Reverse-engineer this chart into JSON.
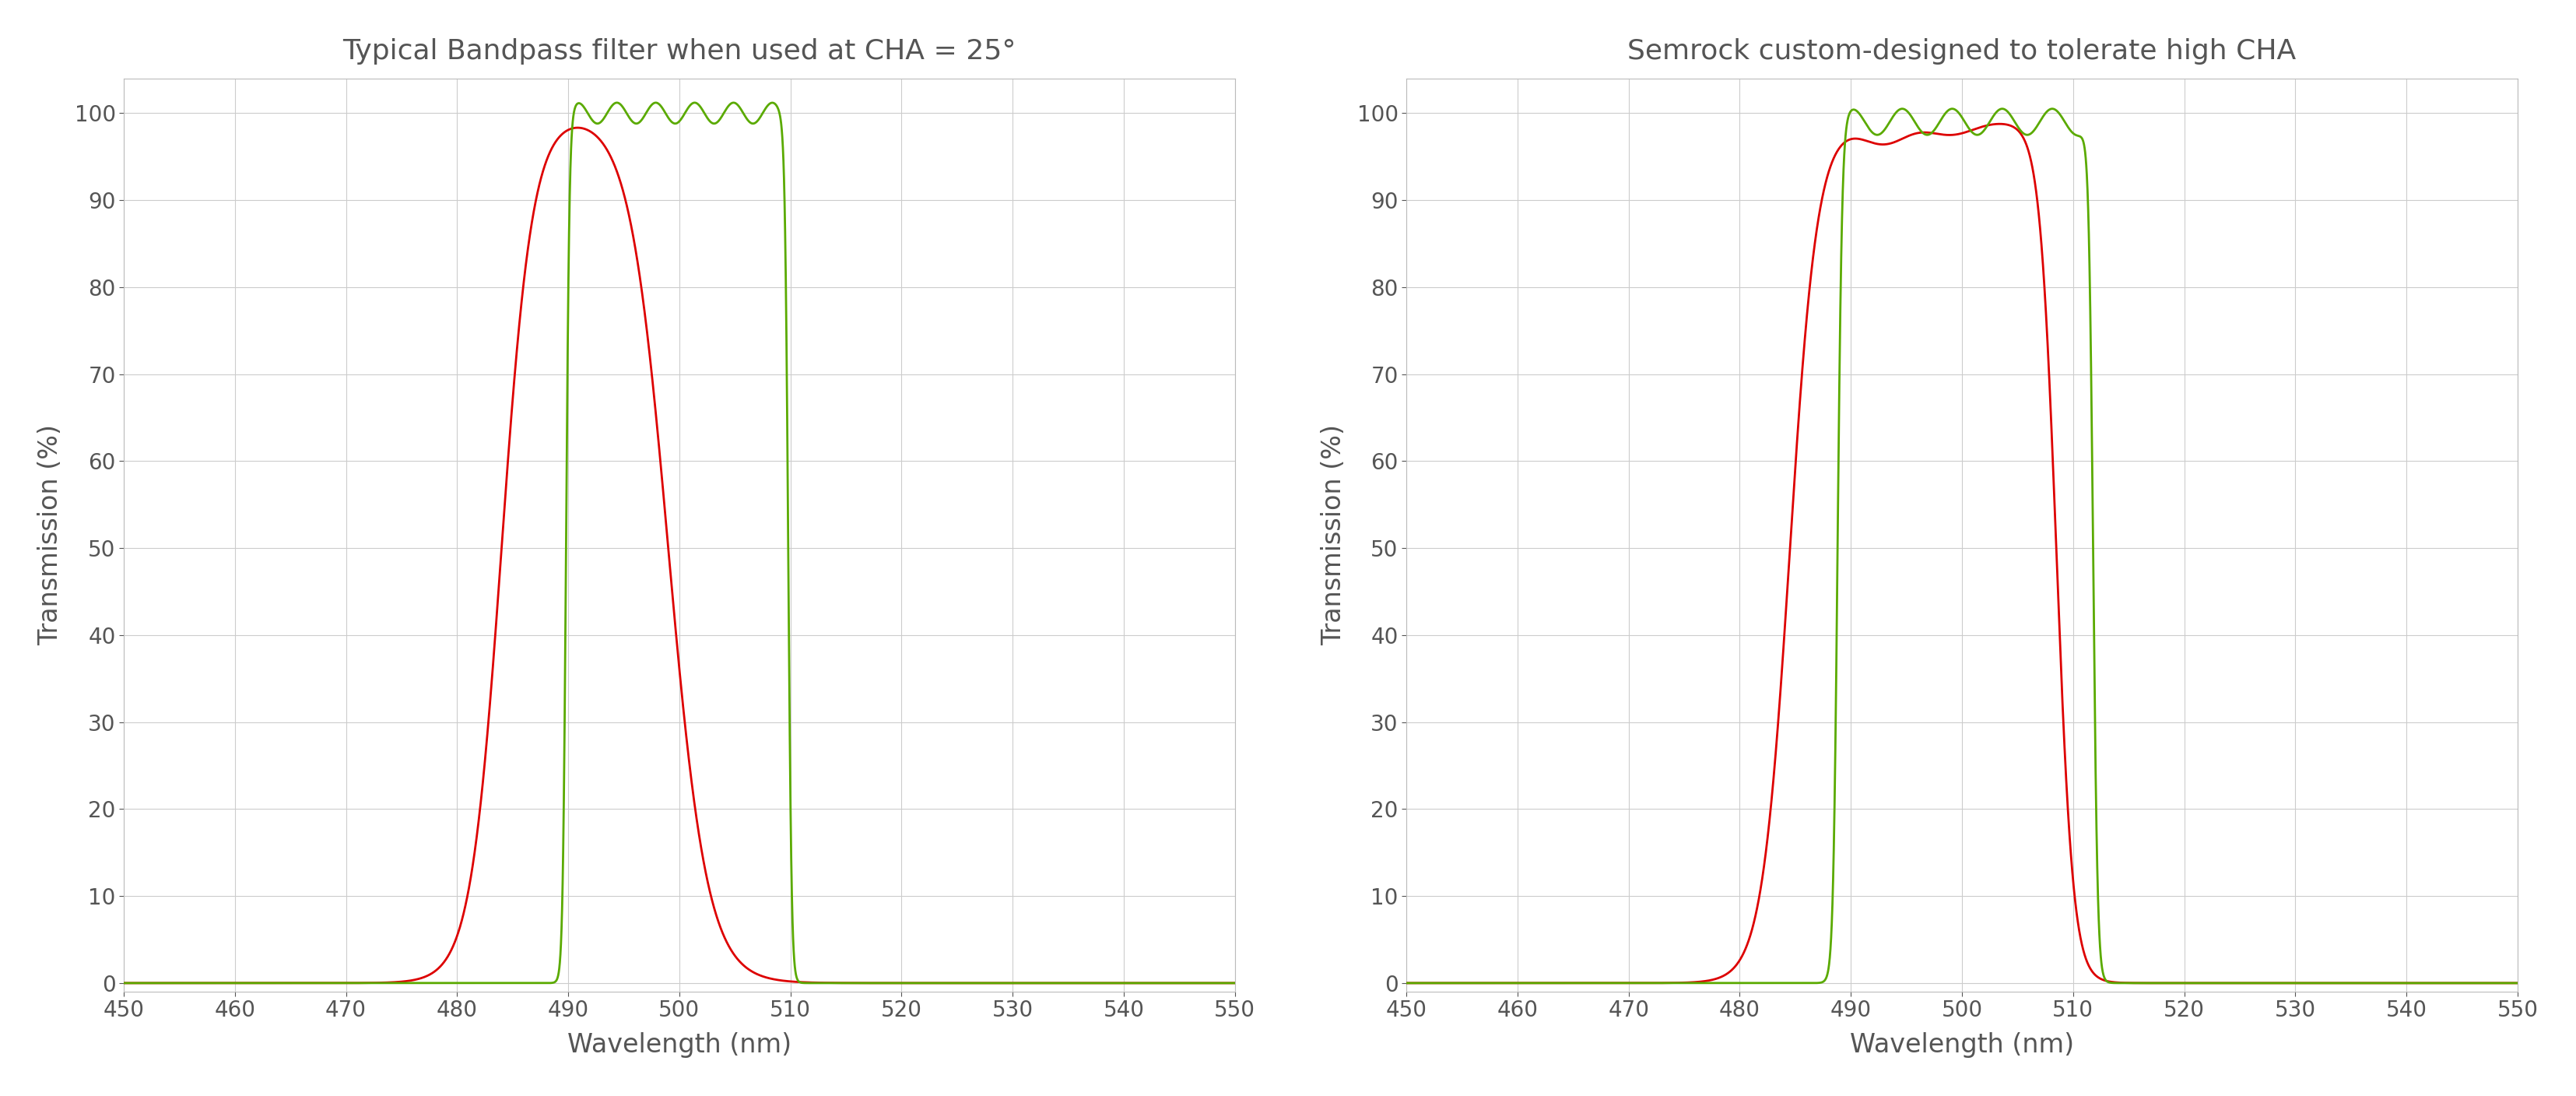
{
  "title_left": "Typical Bandpass filter when used at CHA = 25°",
  "title_right": "Semrock custom-designed to tolerate high CHA",
  "xlabel": "Wavelength (nm)",
  "ylabel": "Transmission (%)",
  "xlim": [
    450,
    550
  ],
  "ylim": [
    -1,
    104
  ],
  "yticks": [
    0,
    10,
    20,
    30,
    40,
    50,
    60,
    70,
    80,
    90,
    100
  ],
  "xticks": [
    450,
    460,
    470,
    480,
    490,
    500,
    510,
    520,
    530,
    540,
    550
  ],
  "green_color": "#5aaa00",
  "red_color": "#dd0000",
  "background_color": "#ffffff",
  "grid_color": "#cccccc",
  "title_color": "#555555",
  "label_color": "#555555",
  "tick_color": "#555555"
}
